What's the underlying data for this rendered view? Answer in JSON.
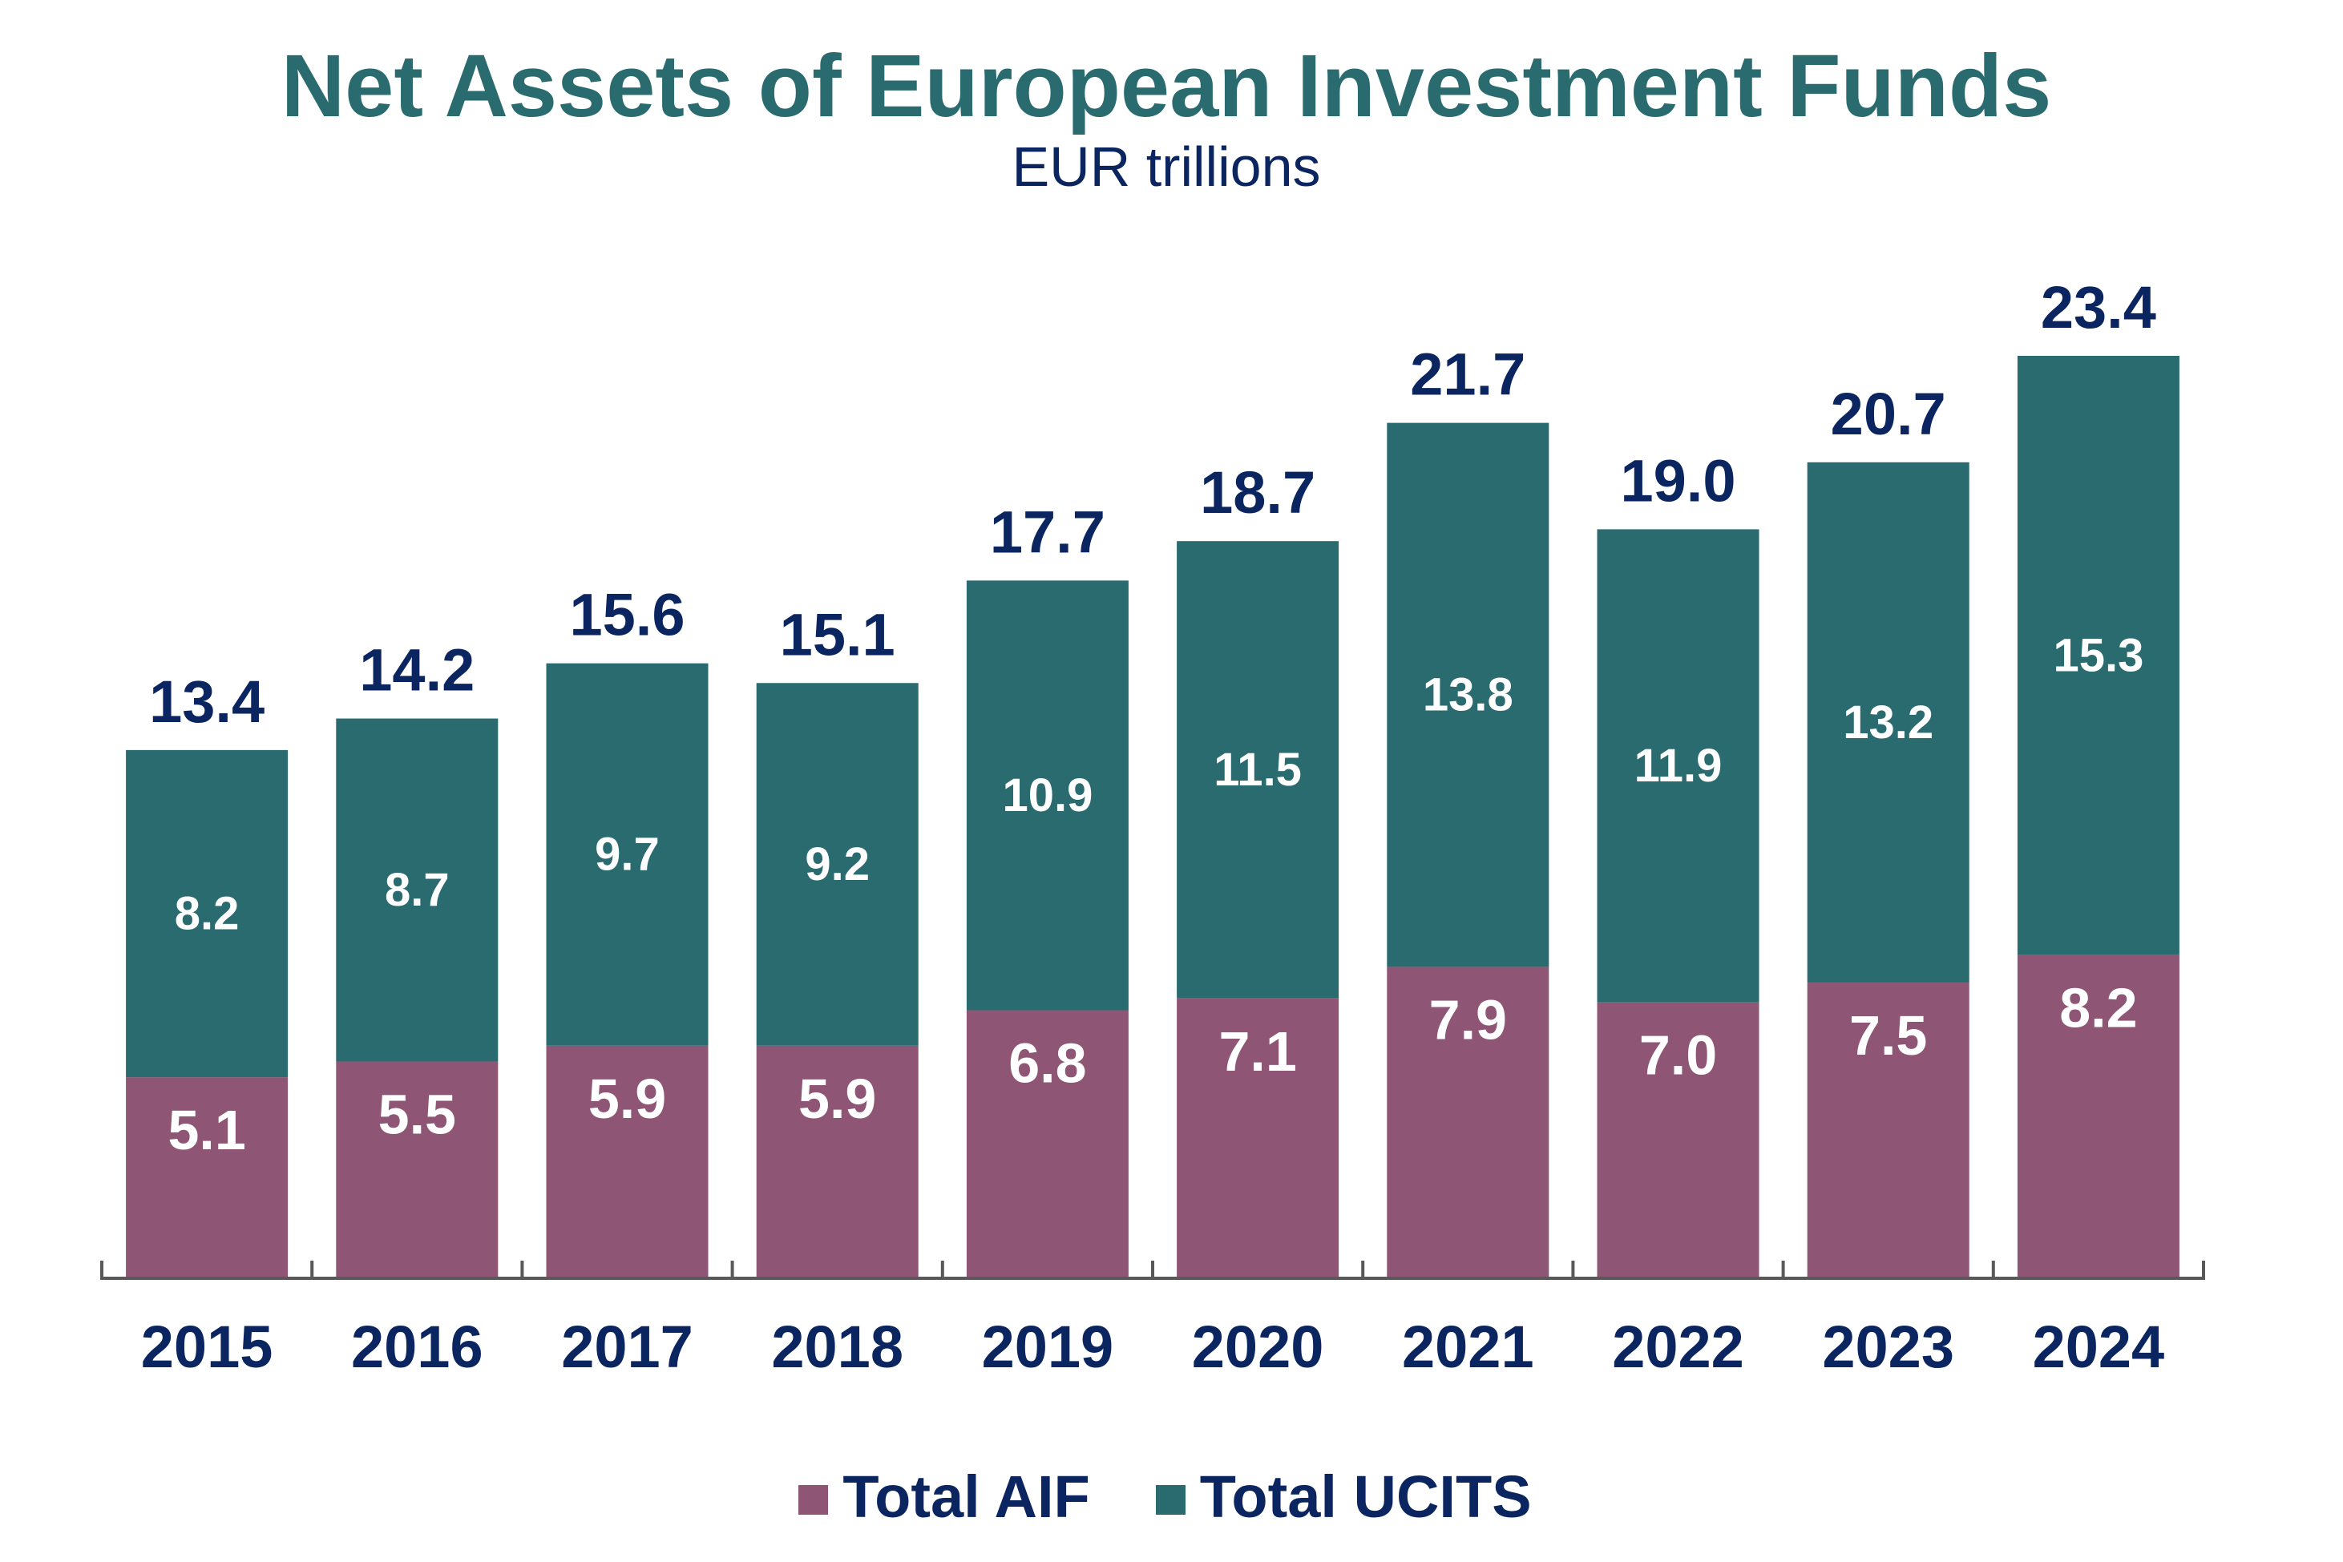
{
  "colors": {
    "title": "#2A6B70",
    "text": "#0B2560",
    "aif": "#8F5574",
    "ucits": "#2A6B70",
    "axis": "#595959",
    "inner_label": "#FFFFFF"
  },
  "chart_data": {
    "type": "bar",
    "stacked": true,
    "title": "Net Assets of European Investment Funds",
    "subtitle": "EUR trillions",
    "xlabel": "",
    "ylabel": "EUR trillions",
    "ylim": [
      0,
      23.4
    ],
    "grid": false,
    "y_axis_visible": false,
    "legend_position": "bottom-center",
    "categories": [
      "2015",
      "2016",
      "2017",
      "2018",
      "2019",
      "2020",
      "2021",
      "2022",
      "2023",
      "2024"
    ],
    "series": [
      {
        "name": "Total AIF",
        "color": "#8F5574",
        "values": [
          5.1,
          5.5,
          5.9,
          5.9,
          6.8,
          7.1,
          7.9,
          7.0,
          7.5,
          8.2
        ],
        "labels": [
          "5.1",
          "5.5",
          "5.9",
          "5.9",
          "6.8",
          "7.1",
          "7.9",
          "7.0",
          "7.5",
          "8.2"
        ]
      },
      {
        "name": "Total UCITS",
        "color": "#2A6B70",
        "values": [
          8.2,
          8.7,
          9.7,
          9.2,
          10.9,
          11.5,
          13.8,
          11.9,
          13.2,
          15.3
        ],
        "labels": [
          "8.2",
          "8.7",
          "9.7",
          "9.2",
          "10.9",
          "11.5",
          "13.8",
          "11.9",
          "13.2",
          "15.3"
        ]
      }
    ],
    "totals": [
      13.4,
      14.2,
      15.6,
      15.1,
      17.7,
      18.7,
      21.7,
      19.0,
      20.7,
      23.4
    ],
    "total_labels": [
      "13.4",
      "14.2",
      "15.6",
      "15.1",
      "17.7",
      "18.7",
      "21.7",
      "19.0",
      "20.7",
      "23.4"
    ]
  },
  "legend": {
    "items": [
      {
        "label": "Total AIF",
        "color": "#8F5574"
      },
      {
        "label": "Total UCITS",
        "color": "#2A6B70"
      }
    ]
  }
}
